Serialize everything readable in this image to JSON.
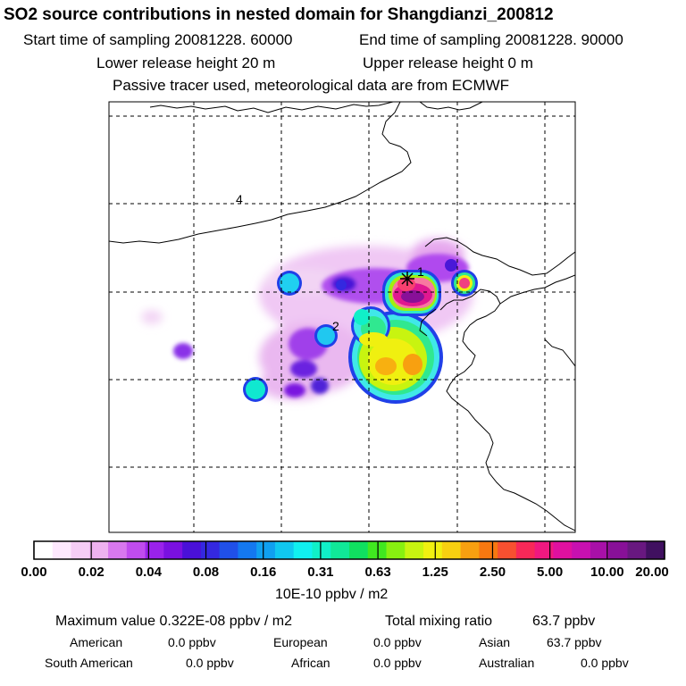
{
  "header": {
    "title": "SO2 source contributions in nested domain for Shangdianzi_200812",
    "start_time": "Start time of sampling 20081228. 60000",
    "end_time": "End time of sampling 20081228. 90000",
    "lower_release": "Lower release height   20 m",
    "upper_release": "Upper release height    0 m",
    "tracer_note": "Passive tracer used, meteorological data are from ECMWF"
  },
  "chart_data": {
    "type": "heatmap",
    "title": "SO2 source contributions in nested domain for Shangdianzi_200812",
    "colorbar": {
      "tick_labels": [
        "0.00",
        "0.02",
        "0.04",
        "0.08",
        "0.16",
        "0.31",
        "0.63",
        "1.25",
        "2.50",
        "5.00",
        "10.00",
        "20.00"
      ],
      "units": "10E-10 ppbv / m2",
      "colors": [
        "#ffffff",
        "#fde8fd",
        "#f6cdf6",
        "#eeb2f0",
        "#d878ee",
        "#c04cee",
        "#9a22ea",
        "#7a10e0",
        "#4a10d8",
        "#3428e0",
        "#2050e8",
        "#1478f0",
        "#10a0f0",
        "#10c8f0",
        "#10f0f0",
        "#10f0c8",
        "#10e898",
        "#10e060",
        "#40e820",
        "#88f010",
        "#c8f410",
        "#f0f010",
        "#f8d010",
        "#f8a010",
        "#f87810",
        "#f85030",
        "#f82858",
        "#f01880",
        "#e010a0",
        "#c810b0",
        "#a810a8",
        "#881098",
        "#681880",
        "#401060"
      ]
    },
    "map_labels": [
      "4",
      "1",
      "2"
    ],
    "grid": true
  },
  "footer": {
    "max_value_label": "Maximum value  0.322E-08 ppbv / m2",
    "total_label": "Total mixing ratio",
    "total_value": "63.7 ppbv",
    "regions": [
      {
        "name": "American",
        "value": "0.0 ppbv"
      },
      {
        "name": "European",
        "value": "0.0 ppbv"
      },
      {
        "name": "Asian",
        "value": "63.7 ppbv"
      },
      {
        "name": "South American",
        "value": "0.0 ppbv"
      },
      {
        "name": "African",
        "value": "0.0 ppbv"
      },
      {
        "name": "Australian",
        "value": "0.0 ppbv"
      }
    ]
  }
}
